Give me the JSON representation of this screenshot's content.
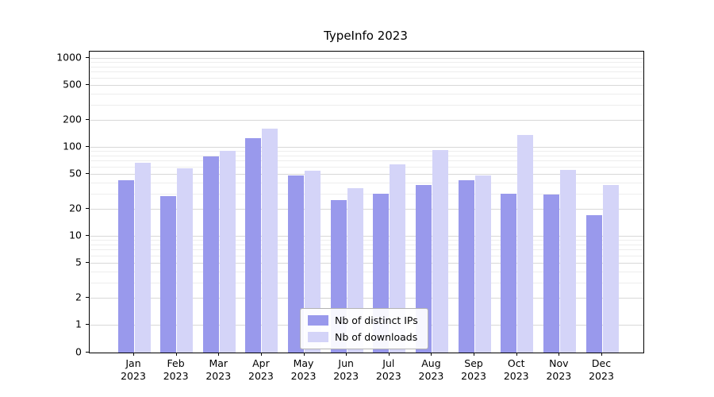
{
  "chart_data": {
    "type": "bar",
    "title": "TypeInfo 2023",
    "categories": [
      "Jan 2023",
      "Feb 2023",
      "Mar 2023",
      "Apr 2023",
      "May 2023",
      "Jun 2023",
      "Jul 2023",
      "Aug 2023",
      "Sep 2023",
      "Oct 2023",
      "Nov 2023",
      "Dec 2023"
    ],
    "series": [
      {
        "name": "Nb of distinct IPs",
        "color": "#9999ec",
        "values": [
          42,
          28,
          78,
          125,
          48,
          25,
          30,
          37,
          42,
          30,
          29,
          17
        ]
      },
      {
        "name": "Nb of downloads",
        "color": "#d4d4f8",
        "values": [
          66,
          58,
          90,
          160,
          54,
          34,
          63,
          92,
          48,
          135,
          55,
          37
        ]
      }
    ],
    "y_ticks": [
      0,
      1,
      2,
      5,
      10,
      20,
      50,
      100,
      200,
      500,
      1000
    ],
    "yscale": "symlog",
    "ylim": [
      0,
      1000
    ],
    "grid": "on",
    "legend_position": "lower center"
  }
}
